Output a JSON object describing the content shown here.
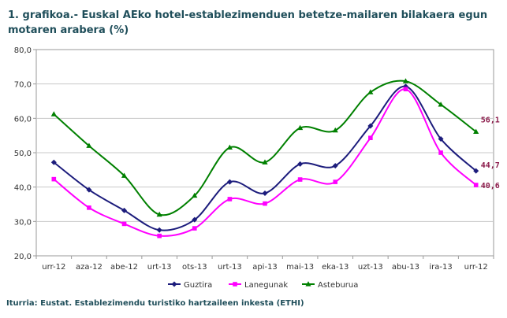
{
  "title_line1": "1. grafikoa.- Euskal AEko hotel-establezimenduen betetze-mailaren bilakaera egun",
  "title_line2": "motaren arabera (%)",
  "source": "Iturria: Eustat. Establezimendu turistiko hartzaileen inkesta (ETHI)",
  "chart_data": {
    "type": "line",
    "title": "1. grafikoa.- Euskal AEko hotel-establezimenduen betetze-mailaren bilakaera egun motaren arabera (%)",
    "xlabel": "",
    "ylabel": "",
    "ylim": [
      20,
      80
    ],
    "yticks": [
      "20,0",
      "30,0",
      "40,0",
      "50,0",
      "60,0",
      "70,0",
      "80,0"
    ],
    "categories": [
      "urr-12",
      "aza-12",
      "abe-12",
      "urt-13",
      "ots-13",
      "urt-13",
      "api-13",
      "mai-13",
      "eka-13",
      "uzt-13",
      "abu-13",
      "ira-13",
      "urr-12"
    ],
    "grid": true,
    "legend_position": "bottom",
    "series": [
      {
        "name": "Guztira",
        "color": "#1c1c7c",
        "marker": "diamond",
        "values": [
          47.2,
          39.2,
          33.2,
          27.5,
          30.5,
          41.5,
          38.2,
          46.7,
          46.2,
          57.8,
          69.3,
          54.0,
          44.7
        ]
      },
      {
        "name": "Lanegunak",
        "color": "#ff00ff",
        "marker": "square",
        "values": [
          42.3,
          34.0,
          29.3,
          25.8,
          28.0,
          36.5,
          35.2,
          42.2,
          41.5,
          54.3,
          68.5,
          50.0,
          40.6
        ]
      },
      {
        "name": "Asteburua",
        "color": "#008000",
        "marker": "triangle",
        "values": [
          61.2,
          52.0,
          43.3,
          32.0,
          37.5,
          51.5,
          47.2,
          57.2,
          56.5,
          67.6,
          70.8,
          64.0,
          56.1
        ]
      }
    ],
    "end_labels": [
      {
        "series": "Asteburua",
        "text": "56,1"
      },
      {
        "series": "Guztira",
        "text": "44,7"
      },
      {
        "series": "Lanegunak",
        "text": "40,6"
      }
    ],
    "end_label_color": "#8b1a4a"
  }
}
